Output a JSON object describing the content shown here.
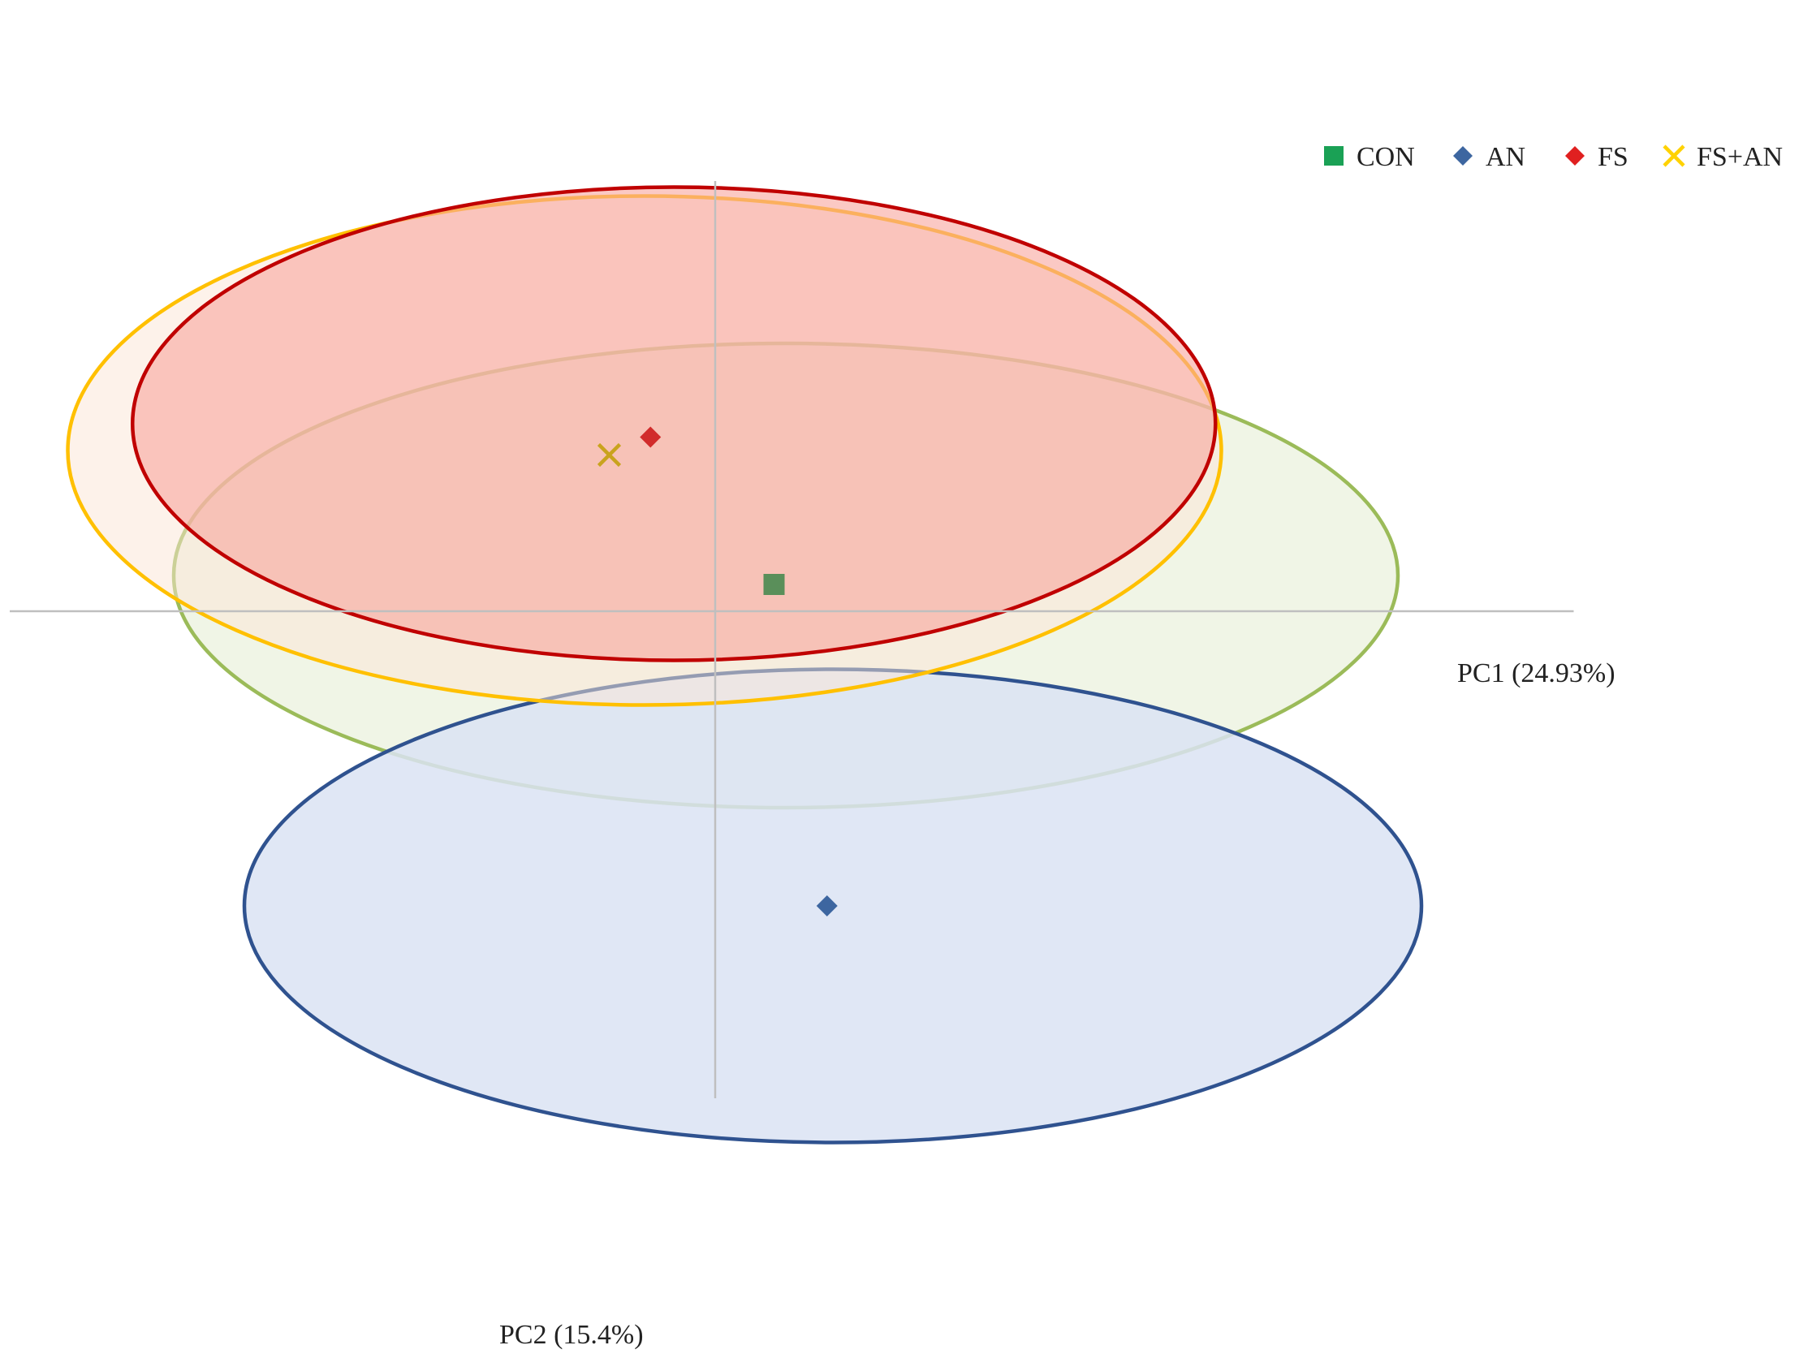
{
  "chart_data": {
    "type": "scatter",
    "title": "",
    "xlabel": "PC1 (24.93%)",
    "ylabel": "PC2 (15.4%)",
    "xlim": [
      -6,
      7.5
    ],
    "ylim": [
      -5.5,
      5
    ],
    "grid": false,
    "legend_position": "top-right",
    "series": [
      {
        "name": "CON",
        "marker": "square",
        "color": "#5a8f5a",
        "legend_color": "#1aa155",
        "x": 0.5,
        "y": 0.3,
        "ellipse": {
          "cx": 0.6,
          "cy": 0.4,
          "rx": 5.2,
          "ry": 2.6,
          "stroke": "#9bbb59",
          "fill": "#ebf1de",
          "fill_opacity": 0.75
        }
      },
      {
        "name": "AN",
        "marker": "diamond",
        "color": "#3d66a0",
        "legend_color": "#3d66a0",
        "x": 0.95,
        "y": -3.3,
        "ellipse": {
          "cx": 1.0,
          "cy": -3.3,
          "rx": 5.0,
          "ry": 2.65,
          "stroke": "#2f528f",
          "fill": "#dae3f3",
          "fill_opacity": 0.85
        }
      },
      {
        "name": "FS",
        "marker": "diamond",
        "color": "#d12b2b",
        "legend_color": "#e02020",
        "x": -0.55,
        "y": 1.95,
        "ellipse": {
          "cx": -0.35,
          "cy": 2.1,
          "rx": 4.6,
          "ry": 2.65,
          "stroke": "#c00000",
          "fill": "#f8a59d",
          "fill_opacity": 0.6
        }
      },
      {
        "name": "FS+AN",
        "marker": "x",
        "color": "#c9a31e",
        "legend_color": "#ffd200",
        "x": -0.9,
        "y": 1.75,
        "ellipse": {
          "cx": -0.6,
          "cy": 1.8,
          "rx": 4.9,
          "ry": 2.85,
          "stroke": "#ffc000",
          "fill": "#fbe5d6",
          "fill_opacity": 0.5
        }
      }
    ]
  }
}
